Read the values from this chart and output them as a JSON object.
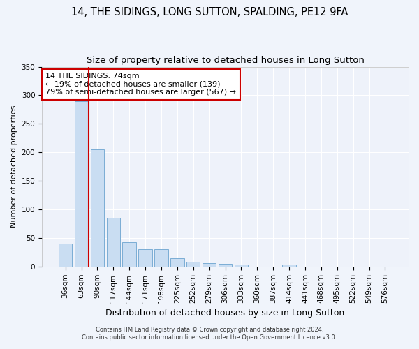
{
  "title": "14, THE SIDINGS, LONG SUTTON, SPALDING, PE12 9FA",
  "subtitle": "Size of property relative to detached houses in Long Sutton",
  "xlabel": "Distribution of detached houses by size in Long Sutton",
  "ylabel": "Number of detached properties",
  "bar_labels": [
    "36sqm",
    "63sqm",
    "90sqm",
    "117sqm",
    "144sqm",
    "171sqm",
    "198sqm",
    "225sqm",
    "252sqm",
    "279sqm",
    "306sqm",
    "333sqm",
    "360sqm",
    "387sqm",
    "414sqm",
    "441sqm",
    "468sqm",
    "495sqm",
    "522sqm",
    "549sqm",
    "576sqm"
  ],
  "bar_values": [
    40,
    290,
    205,
    85,
    42,
    30,
    30,
    15,
    8,
    6,
    5,
    4,
    0,
    0,
    3,
    0,
    0,
    0,
    0,
    0,
    0
  ],
  "bar_color": "#c9ddf2",
  "bar_edge_color": "#7aadd4",
  "vline_x_index": 1.45,
  "vline_color": "#cc0000",
  "annotation_text": "14 THE SIDINGS: 74sqm\n← 19% of detached houses are smaller (139)\n79% of semi-detached houses are larger (567) →",
  "annotation_box_color": "#ffffff",
  "annotation_box_edge": "#cc0000",
  "ylim": [
    0,
    350
  ],
  "yticks": [
    0,
    50,
    100,
    150,
    200,
    250,
    300,
    350
  ],
  "footer1": "Contains HM Land Registry data © Crown copyright and database right 2024.",
  "footer2": "Contains public sector information licensed under the Open Government Licence v3.0.",
  "bg_color": "#f0f4fb",
  "plot_bg_color": "#eef2fa",
  "grid_color": "#ffffff",
  "title_fontsize": 10.5,
  "subtitle_fontsize": 9.5,
  "tick_fontsize": 7.5,
  "ylabel_fontsize": 8,
  "xlabel_fontsize": 9
}
